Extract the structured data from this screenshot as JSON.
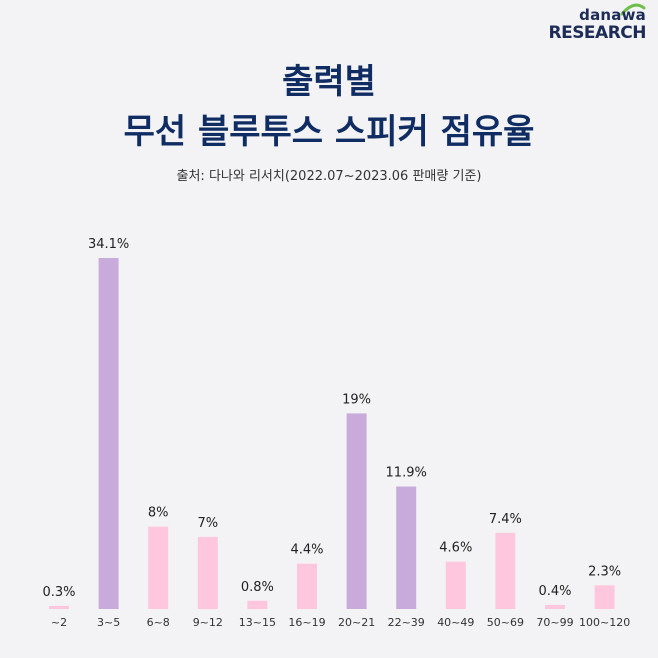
{
  "brand": {
    "top": "danawa",
    "bottom_re": "RE",
    "bottom_rest": "SEARCH"
  },
  "title_line1": "출력별",
  "title_line2": "무선 블루투스 스피커 점유율",
  "source": "출처: 다나와 리서치(2022.07~2023.06 판매량 기준)",
  "colors": {
    "pink": "#ffc7dd",
    "purple": "#c9abdb",
    "title": "#0f2c63",
    "green": "#6cc04a"
  },
  "chart_data": {
    "type": "bar",
    "title": "",
    "xlabel": "",
    "ylabel": "",
    "ylim": [
      0,
      34.1
    ],
    "categories": [
      "~2",
      "3~5",
      "6~8",
      "9~12",
      "13~15",
      "16~19",
      "20~21",
      "22~39",
      "40~49",
      "50~69",
      "70~99",
      "100~120"
    ],
    "values": [
      0.3,
      34.1,
      8,
      7,
      0.8,
      4.4,
      19,
      11.9,
      4.6,
      7.4,
      0.4,
      2.3
    ],
    "value_labels": [
      "0.3%",
      "34.1%",
      "8%",
      "7%",
      "0.8%",
      "4.4%",
      "19%",
      "11.9%",
      "4.6%",
      "7.4%",
      "0.4%",
      "2.3%"
    ],
    "highlight": [
      false,
      true,
      false,
      false,
      false,
      false,
      true,
      true,
      false,
      false,
      false,
      false
    ],
    "grid": false,
    "legend": "none"
  }
}
